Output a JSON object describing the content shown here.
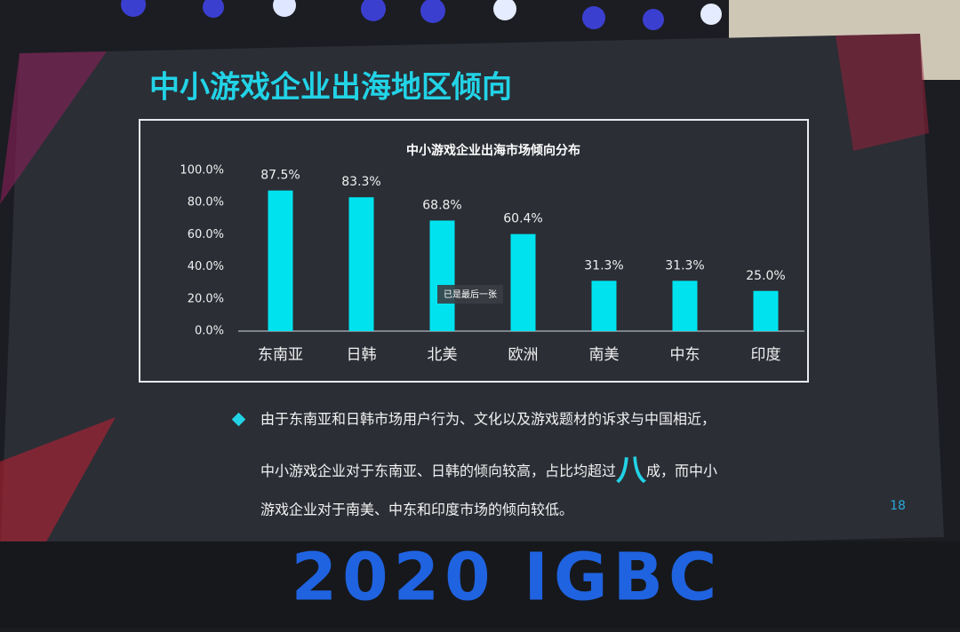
{
  "slide": {
    "title": "中小游戏企业出海地区倾向",
    "bullet": [
      "由于东南亚和日韩市场用户行为、文化以及游戏题材的诉求与中国相近，",
      "中小游戏企业对于东南亚、日韩的倾向较高，占比均超过",
      "八",
      "成，而中小",
      "游戏企业对于南美、中东和印度市场的倾向较低。"
    ],
    "page": "18"
  },
  "toast": "已是最后一张",
  "banner": "2020 IGBC",
  "chart_data": {
    "type": "bar",
    "title": "中小游戏企业出海市场倾向分布",
    "categories": [
      "东南亚",
      "日韩",
      "北美",
      "欧洲",
      "南美",
      "中东",
      "印度"
    ],
    "values": [
      87.5,
      83.3,
      68.8,
      60.4,
      31.3,
      31.3,
      25.0
    ],
    "value_labels": [
      "87.5%",
      "83.3%",
      "68.8%",
      "60.4%",
      "31.3%",
      "31.3%",
      "25.0%"
    ],
    "color": "#00e3ef",
    "ylim": [
      0,
      100
    ],
    "yticks": [
      {
        "value": 0,
        "label": "0.0%"
      },
      {
        "value": 20,
        "label": "20.0%"
      },
      {
        "value": 40,
        "label": "40.0%"
      },
      {
        "value": 60,
        "label": "60.0%"
      },
      {
        "value": 80,
        "label": "80.0%"
      },
      {
        "value": 100,
        "label": "100.0%"
      }
    ],
    "grid": false
  }
}
